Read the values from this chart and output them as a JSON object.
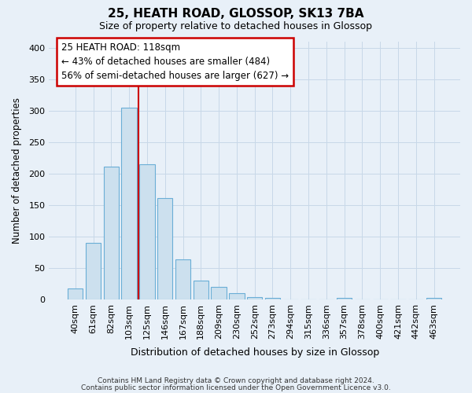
{
  "title": "25, HEATH ROAD, GLOSSOP, SK13 7BA",
  "subtitle": "Size of property relative to detached houses in Glossop",
  "xlabel": "Distribution of detached houses by size in Glossop",
  "ylabel": "Number of detached properties",
  "footnote1": "Contains HM Land Registry data © Crown copyright and database right 2024.",
  "footnote2": "Contains public sector information licensed under the Open Government Licence v3.0.",
  "bar_labels": [
    "40sqm",
    "61sqm",
    "82sqm",
    "103sqm",
    "125sqm",
    "146sqm",
    "167sqm",
    "188sqm",
    "209sqm",
    "230sqm",
    "252sqm",
    "273sqm",
    "294sqm",
    "315sqm",
    "336sqm",
    "357sqm",
    "378sqm",
    "400sqm",
    "421sqm",
    "442sqm",
    "463sqm"
  ],
  "bar_values": [
    17,
    90,
    211,
    305,
    214,
    161,
    63,
    30,
    20,
    10,
    4,
    2,
    0,
    0,
    0,
    2,
    0,
    0,
    0,
    0,
    2
  ],
  "bar_color": "#cce0ee",
  "bar_edge_color": "#6aaed6",
  "grid_color": "#c8d8e8",
  "vline_color": "#cc0000",
  "vline_x_index": 3.5,
  "annotation_text": "25 HEATH ROAD: 118sqm\n← 43% of detached houses are smaller (484)\n56% of semi-detached houses are larger (627) →",
  "annotation_box_color": "#ffffff",
  "annotation_border_color": "#cc0000",
  "ylim": [
    0,
    410
  ],
  "yticks": [
    0,
    50,
    100,
    150,
    200,
    250,
    300,
    350,
    400
  ],
  "background_color": "#e8f0f8"
}
